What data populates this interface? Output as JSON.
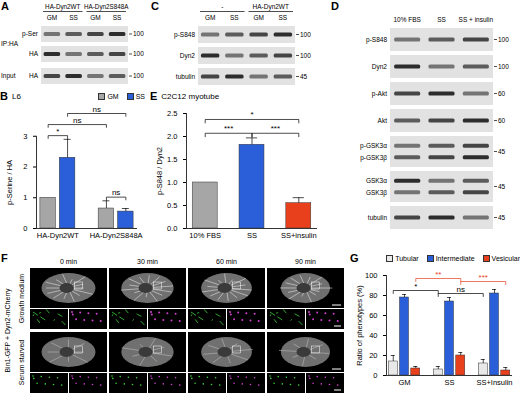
{
  "chart_data": [
    {
      "panel": "B",
      "type": "bar",
      "title": "L6",
      "ylabel": "p-Serine / HA",
      "categories": [
        "HA-Dyn2WT",
        "HA-Dyn2S848A"
      ],
      "series": [
        {
          "name": "GM",
          "color": "#a6a6a6",
          "values": [
            1,
            0.65
          ],
          "errors": [
            0,
            0.25
          ]
        },
        {
          "name": "SS",
          "color": "#2b5fd9",
          "values": [
            2.3,
            0.55
          ],
          "errors": [
            0.6,
            0.1
          ]
        }
      ],
      "ylim": [
        0,
        3
      ],
      "yticks": [
        0,
        1,
        2,
        3
      ],
      "legend": "top",
      "significance": [
        {
          "label": "*",
          "from": {
            "category": "HA-Dyn2WT",
            "series": "GM"
          },
          "to": {
            "category": "HA-Dyn2WT",
            "series": "SS"
          }
        },
        {
          "label": "ns",
          "from": {
            "category": "HA-Dyn2S848A",
            "series": "GM"
          },
          "to": {
            "category": "HA-Dyn2S848A",
            "series": "SS"
          }
        },
        {
          "label": "ns",
          "from": {
            "category": "HA-Dyn2WT",
            "series": "GM"
          },
          "to": {
            "category": "HA-Dyn2S848A",
            "series": "GM"
          }
        },
        {
          "label": "ns",
          "from": {
            "category": "HA-Dyn2WT",
            "series": "SS"
          },
          "to": {
            "category": "HA-Dyn2S848A",
            "series": "SS"
          }
        }
      ]
    },
    {
      "panel": "E",
      "type": "bar",
      "title": "C2C12 myotube",
      "ylabel": "p-S848 / Dyn2",
      "categories": [
        "10% FBS",
        "SS",
        "SS+insulin"
      ],
      "values": [
        1,
        1.82,
        0.55
      ],
      "errors": [
        0,
        0.15,
        0.12
      ],
      "colors": [
        "#a6a6a6",
        "#2b5fd9",
        "#e8401c"
      ],
      "ylim": [
        0,
        2.5
      ],
      "yticks": [
        {
          "value": 0,
          "label": "0.0"
        },
        {
          "value": 0.5,
          "label": "0.5"
        },
        {
          "value": 1,
          "label": "1.0"
        },
        {
          "value": 1.5,
          "label": "1.5"
        },
        {
          "value": 2,
          "label": "2.0"
        },
        {
          "value": 2.5,
          "label": "2.5"
        }
      ],
      "significance": [
        {
          "label": "***",
          "from": {
            "category": "10% FBS"
          },
          "to": {
            "category": "SS"
          }
        },
        {
          "label": "***",
          "from": {
            "category": "SS"
          },
          "to": {
            "category": "SS+insulin"
          }
        },
        {
          "label": "*",
          "from": {
            "category": "10% FBS"
          },
          "to": {
            "category": "SS+insulin"
          }
        }
      ]
    },
    {
      "panel": "G",
      "type": "bar",
      "ylabel": "Ratio of phenotypes (%)",
      "categories": [
        "GM",
        "SS",
        "SS+Insulin"
      ],
      "series": [
        {
          "name": "Tubular",
          "color": "#e8e8e8",
          "values": [
            14,
            6,
            12
          ],
          "errors": [
            6,
            3,
            4
          ]
        },
        {
          "name": "Intermediate",
          "color": "#2b5fd9",
          "values": [
            78,
            74,
            82
          ],
          "errors": [
            3,
            4,
            4
          ]
        },
        {
          "name": "Vesicular",
          "color": "#e8401c",
          "values": [
            7,
            20,
            5
          ],
          "errors": [
            2,
            3,
            3
          ]
        }
      ],
      "ylim": [
        0,
        100
      ],
      "yticks": [
        0,
        20,
        40,
        60,
        80,
        100
      ],
      "legend": "top",
      "significance": [
        {
          "label": "*",
          "from": {
            "category": "GM",
            "series": "Tubular"
          },
          "to": {
            "category": "SS",
            "series": "Tubular"
          }
        },
        {
          "label": "ns",
          "from": {
            "category": "SS",
            "series": "Tubular"
          },
          "to": {
            "category": "SS+Insulin",
            "series": "Tubular"
          }
        },
        {
          "label": "**",
          "color": "#e8401c",
          "from": {
            "category": "GM",
            "series": "Vesicular"
          },
          "to": {
            "category": "SS",
            "series": "Vesicular"
          }
        },
        {
          "label": "***",
          "color": "#e8401c",
          "from": {
            "category": "SS",
            "series": "Vesicular"
          },
          "to": {
            "category": "SS+Insulin",
            "series": "Vesicular"
          }
        }
      ]
    }
  ],
  "blots": [
    {
      "panel": "A",
      "column_groups": [
        {
          "label": "HA-Dyn2WT",
          "columns": [
            "GM",
            "SS"
          ]
        },
        {
          "label": "HA-Dyn2S848A",
          "columns": [
            "GM",
            "SS"
          ]
        }
      ],
      "sections": [
        {
          "label": "IP:HA",
          "rows": [
            {
              "labels": [
                "p-Ser"
              ],
              "marker": 100
            },
            {
              "labels": [
                "HA"
              ],
              "marker": 100
            }
          ]
        },
        {
          "label": "Input",
          "rows": [
            {
              "labels": [
                "HA"
              ],
              "marker": 100
            }
          ]
        }
      ]
    },
    {
      "panel": "C",
      "column_groups": [
        {
          "label": "-",
          "columns": [
            "GM",
            "SS"
          ]
        },
        {
          "label": "HA-Dyn2WT",
          "columns": [
            "GM",
            "SS"
          ]
        }
      ],
      "sections": [
        {
          "rows": [
            {
              "labels": [
                "p-S848"
              ],
              "marker": 100
            },
            {
              "labels": [
                "Dyn2"
              ],
              "marker": 100
            },
            {
              "labels": [
                "tubulin"
              ],
              "marker": 45
            }
          ]
        }
      ]
    },
    {
      "panel": "D",
      "column_groups": [
        {
          "columns": [
            "10% FBS",
            "SS",
            "SS + insulin"
          ]
        }
      ],
      "sections": [
        {
          "rows": [
            {
              "labels": [
                "p-S848"
              ],
              "marker": 100
            },
            {
              "labels": [
                "Dyn2"
              ],
              "marker": 100
            },
            {
              "labels": [
                "p-Akt"
              ],
              "marker": 60
            },
            {
              "labels": [
                "Akt"
              ],
              "marker": 60
            },
            {
              "labels": [
                "p-GSK3α",
                "p-GSK3β"
              ],
              "marker": 45
            },
            {
              "labels": [
                "GSK3α",
                "GSK3β"
              ],
              "marker": 45
            },
            {
              "labels": [
                "tubulin"
              ],
              "marker": 45
            }
          ]
        }
      ]
    }
  ],
  "micrographs": {
    "panel": "F",
    "label": "Bin1-GFP + Dyn2-mCherry",
    "times": [
      "0 min",
      "30 min",
      "60 min",
      "90 min"
    ],
    "conditions": [
      "Growth medium",
      "Serum starved"
    ]
  }
}
